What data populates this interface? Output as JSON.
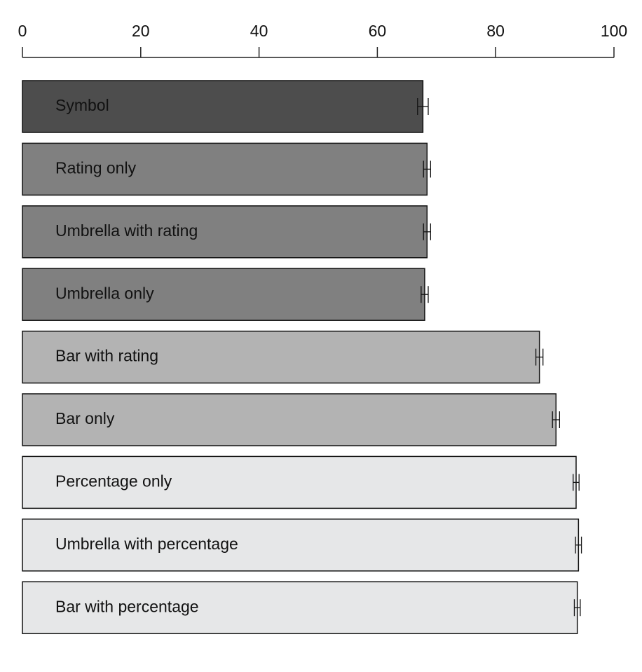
{
  "chart_data": {
    "type": "bar",
    "orientation": "horizontal",
    "categories": [
      "Symbol",
      "Rating only",
      "Umbrella with rating",
      "Umbrella only",
      "Bar with rating",
      "Bar only",
      "Percentage only",
      "Umbrella with percentage",
      "Bar with percentage"
    ],
    "values": [
      67.7,
      68.4,
      68.4,
      68.0,
      87.4,
      90.2,
      93.6,
      94.0,
      93.8
    ],
    "errors": [
      0.9,
      0.6,
      0.6,
      0.6,
      0.6,
      0.6,
      0.5,
      0.5,
      0.5
    ],
    "colors": [
      "#4d4d4d",
      "#808080",
      "#808080",
      "#808080",
      "#b3b3b3",
      "#b3b3b3",
      "#e6e7e8",
      "#e6e7e8",
      "#e6e7e8"
    ],
    "xlim": [
      0,
      100
    ],
    "xticks": [
      0,
      20,
      40,
      60,
      80,
      100
    ],
    "x_axis_position": "top",
    "grid": false
  }
}
